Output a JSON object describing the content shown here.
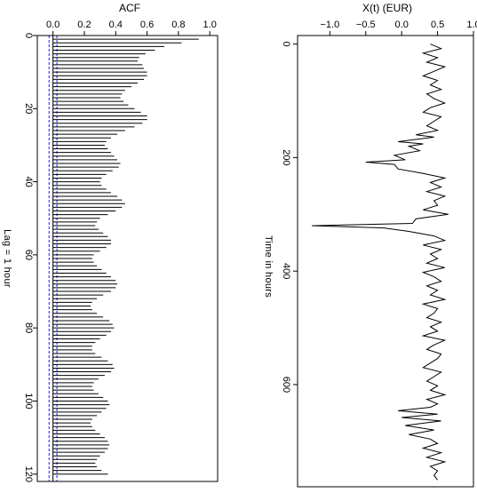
{
  "chart_data": [
    {
      "type": "bar",
      "orientation": "horizontal",
      "title": "ACF",
      "ylabel": "Lag = 1 hour",
      "xlim": [
        -0.1,
        1.05
      ],
      "ylim": [
        0,
        122
      ],
      "x_ticks": [
        {
          "value": 0.0,
          "label": "0.0"
        },
        {
          "value": 0.2,
          "label": "0.2"
        },
        {
          "value": 0.4,
          "label": "0.4"
        },
        {
          "value": 0.6,
          "label": "0.6"
        },
        {
          "value": 0.8,
          "label": "0.8"
        },
        {
          "value": 1.0,
          "label": "1.0"
        }
      ],
      "y_ticks": [
        {
          "value": 0,
          "label": "0"
        },
        {
          "value": 20,
          "label": "20"
        },
        {
          "value": 40,
          "label": "40"
        },
        {
          "value": 60,
          "label": "60"
        },
        {
          "value": 80,
          "label": "80"
        },
        {
          "value": 100,
          "label": "100"
        },
        {
          "value": 120,
          "label": "120"
        }
      ],
      "confidence_band": [
        -0.025,
        0.025
      ],
      "confidence_band_color": "#1a1aff",
      "lags": [
        0,
        1,
        2,
        3,
        4,
        5,
        6,
        7,
        8,
        9,
        10,
        11,
        12,
        13,
        14,
        15,
        16,
        17,
        18,
        19,
        20,
        21,
        22,
        23,
        24,
        25,
        26,
        27,
        28,
        29,
        30,
        31,
        32,
        33,
        34,
        35,
        36,
        37,
        38,
        39,
        40,
        41,
        42,
        43,
        44,
        45,
        46,
        47,
        48,
        49,
        50,
        51,
        52,
        53,
        54,
        55,
        56,
        57,
        58,
        59,
        60,
        61,
        62,
        63,
        64,
        65,
        66,
        67,
        68,
        69,
        70,
        71,
        72,
        73,
        74,
        75,
        76,
        77,
        78,
        79,
        80,
        81,
        82,
        83,
        84,
        85,
        86,
        87,
        88,
        89,
        90,
        91,
        92,
        93,
        94,
        95,
        96,
        97,
        98,
        99,
        100,
        101,
        102,
        103,
        104,
        105,
        106,
        107,
        108,
        109,
        110,
        111,
        112,
        113,
        114,
        115,
        116,
        117,
        118,
        119,
        120
      ],
      "values": [
        1.0,
        0.93,
        0.82,
        0.71,
        0.65,
        0.59,
        0.55,
        0.54,
        0.57,
        0.58,
        0.6,
        0.6,
        0.58,
        0.54,
        0.5,
        0.46,
        0.44,
        0.43,
        0.45,
        0.48,
        0.52,
        0.56,
        0.6,
        0.6,
        0.57,
        0.52,
        0.46,
        0.41,
        0.37,
        0.34,
        0.33,
        0.35,
        0.37,
        0.39,
        0.41,
        0.43,
        0.42,
        0.38,
        0.34,
        0.31,
        0.3,
        0.31,
        0.34,
        0.37,
        0.41,
        0.44,
        0.46,
        0.44,
        0.4,
        0.35,
        0.3,
        0.28,
        0.27,
        0.29,
        0.32,
        0.35,
        0.37,
        0.37,
        0.34,
        0.3,
        0.26,
        0.25,
        0.26,
        0.28,
        0.31,
        0.34,
        0.37,
        0.4,
        0.41,
        0.4,
        0.37,
        0.32,
        0.28,
        0.25,
        0.24,
        0.25,
        0.28,
        0.32,
        0.36,
        0.38,
        0.39,
        0.37,
        0.34,
        0.3,
        0.27,
        0.25,
        0.25,
        0.27,
        0.31,
        0.35,
        0.38,
        0.39,
        0.37,
        0.33,
        0.29,
        0.26,
        0.25,
        0.26,
        0.29,
        0.32,
        0.35,
        0.36,
        0.34,
        0.31,
        0.28,
        0.25,
        0.24,
        0.25,
        0.27,
        0.3,
        0.33,
        0.35,
        0.36,
        0.35,
        0.33,
        0.3,
        0.28,
        0.27,
        0.28,
        0.31,
        0.35
      ]
    },
    {
      "type": "line",
      "title": "X(t) (EUR)",
      "ylabel": "Time in hours",
      "xlim": [
        -1.45,
        1.0
      ],
      "ylim": [
        -15,
        780
      ],
      "x_ticks": [
        {
          "value": -1.0,
          "label": "−1.0"
        },
        {
          "value": -0.5,
          "label": "−0.5"
        },
        {
          "value": 0.0,
          "label": "0.0"
        },
        {
          "value": 0.5,
          "label": "0.5"
        },
        {
          "value": 1.0,
          "label": "1.0"
        }
      ],
      "y_ticks": [
        {
          "value": 0,
          "label": "0"
        },
        {
          "value": 200,
          "label": "200"
        },
        {
          "value": 400,
          "label": "400"
        },
        {
          "value": 600,
          "label": "600"
        }
      ],
      "series": [
        {
          "t": [
            0,
            8,
            16,
            24,
            32,
            40,
            48,
            56,
            64,
            72,
            80,
            88,
            96,
            104,
            112,
            120,
            128,
            136,
            144,
            152,
            160,
            164,
            172,
            176,
            180,
            188,
            196,
            204,
            208,
            212,
            220,
            228,
            236,
            244,
            252,
            260,
            268,
            276,
            284,
            292,
            300,
            308,
            316,
            320,
            324,
            330,
            338,
            346,
            354,
            362,
            370,
            378,
            386,
            394,
            402,
            410,
            418,
            426,
            434,
            442,
            450,
            458,
            466,
            474,
            482,
            490,
            498,
            506,
            514,
            522,
            530,
            538,
            546,
            554,
            562,
            570,
            578,
            586,
            594,
            602,
            610,
            618,
            626,
            634,
            640,
            646,
            652,
            658,
            664,
            672,
            680,
            688,
            696,
            704,
            712,
            720,
            728,
            736,
            744,
            752,
            760,
            768
          ],
          "x": [
            0.4,
            0.55,
            0.3,
            0.5,
            0.35,
            0.6,
            0.45,
            0.3,
            0.5,
            0.4,
            0.55,
            0.35,
            0.45,
            0.6,
            0.4,
            0.3,
            0.55,
            0.45,
            0.35,
            0.5,
            0.2,
            0.45,
            -0.05,
            0.3,
            0.1,
            0.25,
            -0.1,
            0.05,
            -0.5,
            -0.1,
            -0.05,
            0.3,
            0.6,
            0.4,
            0.55,
            0.35,
            0.6,
            0.45,
            0.5,
            0.3,
            0.65,
            0.2,
            0.15,
            -1.25,
            -0.25,
            0.1,
            0.45,
            0.6,
            0.3,
            0.55,
            0.4,
            0.5,
            0.35,
            0.6,
            0.3,
            0.45,
            0.55,
            0.35,
            0.5,
            0.4,
            0.6,
            0.3,
            0.5,
            0.45,
            0.35,
            0.55,
            0.4,
            0.5,
            0.3,
            0.6,
            0.45,
            0.35,
            0.55,
            0.5,
            0.4,
            0.3,
            0.55,
            0.45,
            0.35,
            0.5,
            0.4,
            0.6,
            0.35,
            0.5,
            0.4,
            -0.05,
            0.5,
            0.0,
            0.55,
            0.05,
            0.45,
            0.1,
            0.4,
            0.5,
            0.3,
            0.55,
            0.35,
            0.6,
            0.4,
            0.5,
            0.45,
            0.5
          ]
        }
      ]
    }
  ],
  "colors": {
    "axis": "#000000",
    "band": "#1a1aff",
    "series": "#000000"
  }
}
